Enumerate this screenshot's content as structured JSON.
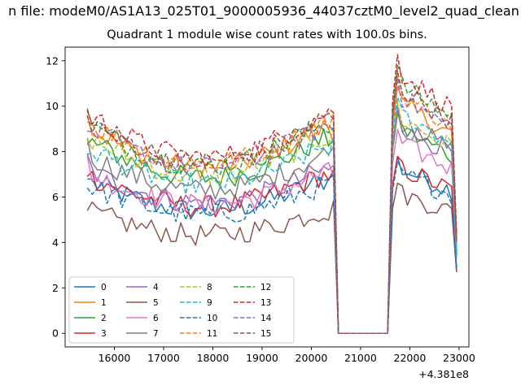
{
  "figure": {
    "suptitle": "n file: modeM0/AS1A13_025T01_9000005936_44037cztM0_level2_quad_clean",
    "title": "Quadrant 1 module wise count rates with 100.0s bins."
  },
  "chart_data": {
    "type": "line",
    "title": "Quadrant 1 module wise count rates with 100.0s bins.",
    "xlabel": "",
    "ylabel": "",
    "x_offset_label": "+4.381e8",
    "xlim": [
      15000,
      23200
    ],
    "ylim": [
      -0.6,
      12.6
    ],
    "xticks": [
      16000,
      17000,
      18000,
      19000,
      20000,
      21000,
      22000,
      23000
    ],
    "yticks": [
      0,
      2,
      4,
      6,
      8,
      10,
      12
    ],
    "legend_position": "lower-left",
    "legend_columns": 4,
    "segments": [
      {
        "x_start": 15450,
        "x_end": 20450,
        "x_step": 100
      },
      {
        "x_start": 20550,
        "x_end": 21550,
        "x_step": 100
      },
      {
        "x_start": 21650,
        "x_end": 22950,
        "x_step": 100
      }
    ],
    "series": [
      {
        "name": "0",
        "color": "#1f77b4",
        "dash": "solid",
        "first": 6.8,
        "mean1": 6.0,
        "mean3": 6.6,
        "last": 2.7
      },
      {
        "name": "1",
        "color": "#ff7f0e",
        "dash": "solid",
        "first": 9.6,
        "mean1": 8.1,
        "mean3": 9.2,
        "last": 4.3
      },
      {
        "name": "2",
        "color": "#2ca02c",
        "dash": "solid",
        "first": 8.3,
        "mean1": 7.6,
        "mean3": 8.2,
        "last": 3.6
      },
      {
        "name": "3",
        "color": "#d62728",
        "dash": "solid",
        "first": 6.9,
        "mean1": 6.2,
        "mean3": 6.6,
        "last": 2.8
      },
      {
        "name": "4",
        "color": "#9467bd",
        "dash": "solid",
        "first": 7.9,
        "mean1": 6.4,
        "mean3": 8.3,
        "last": 3.5
      },
      {
        "name": "5",
        "color": "#8c564b",
        "dash": "solid",
        "first": 5.4,
        "mean1": 4.8,
        "mean3": 5.6,
        "last": 2.7
      },
      {
        "name": "6",
        "color": "#e377c2",
        "dash": "solid",
        "first": 7.8,
        "mean1": 6.3,
        "mean3": 7.6,
        "last": 3.3
      },
      {
        "name": "7",
        "color": "#7f7f7f",
        "dash": "solid",
        "first": 8.6,
        "mean1": 7.0,
        "mean3": 8.5,
        "last": 3.6
      },
      {
        "name": "8",
        "color": "#bcbd22",
        "dash": "dashed",
        "first": 8.6,
        "mean1": 7.7,
        "mean3": 8.6,
        "last": 3.8
      },
      {
        "name": "9",
        "color": "#17becf",
        "dash": "dashed",
        "first": 7.9,
        "mean1": 7.3,
        "mean3": 8.8,
        "last": 3.4
      },
      {
        "name": "10",
        "color": "#1f77b4",
        "dash": "dashed",
        "first": 6.4,
        "mean1": 5.8,
        "mean3": 6.4,
        "last": 2.9
      },
      {
        "name": "11",
        "color": "#ff7f0e",
        "dash": "dashed",
        "first": 9.3,
        "mean1": 8.3,
        "mean3": 9.6,
        "last": 4.2
      },
      {
        "name": "12",
        "color": "#2ca02c",
        "dash": "dashed",
        "first": 9.9,
        "mean1": 8.2,
        "mean3": 10.0,
        "last": 4.0
      },
      {
        "name": "13",
        "color": "#d62728",
        "dash": "dashed",
        "first": 9.8,
        "mean1": 8.6,
        "mean3": 10.4,
        "last": 4.4
      },
      {
        "name": "14",
        "color": "#9467bd",
        "dash": "dashed",
        "first": 8.9,
        "mean1": 8.1,
        "mean3": 9.5,
        "last": 4.0
      },
      {
        "name": "15",
        "color": "#8c564b",
        "dash": "dashed",
        "first": 9.6,
        "mean1": 8.4,
        "mean3": 9.8,
        "last": 4.1
      }
    ]
  }
}
